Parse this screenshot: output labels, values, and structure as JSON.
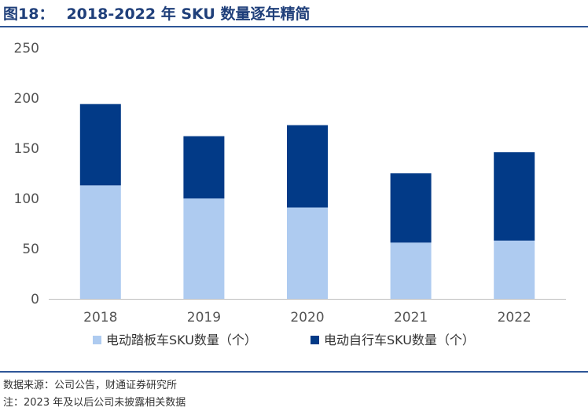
{
  "figure": {
    "label": "图18：",
    "title": "2018-2022 年 SKU 数量逐年精简"
  },
  "footer": {
    "source": "数据来源：公司公告，财通证券研究所",
    "note": "注：2023 年及以后公司未披露相关数据"
  },
  "colors": {
    "series_light": "#aecbf0",
    "series_dark": "#023a87",
    "axis": "#bfbfbf",
    "rule": "#2e5597"
  },
  "chart_data": {
    "type": "bar",
    "stacked": true,
    "categories": [
      "2018",
      "2019",
      "2020",
      "2021",
      "2022"
    ],
    "series": [
      {
        "name": "电动踏板车SKU数量（个）",
        "values": [
          113,
          100,
          91,
          56,
          58
        ]
      },
      {
        "name": "电动自行车SKU数量（个）",
        "values": [
          81,
          62,
          82,
          69,
          88
        ]
      }
    ],
    "ylim": [
      0,
      250
    ],
    "yticks": [
      0,
      50,
      100,
      150,
      200,
      250
    ],
    "grid": false,
    "legend": "bottom"
  }
}
